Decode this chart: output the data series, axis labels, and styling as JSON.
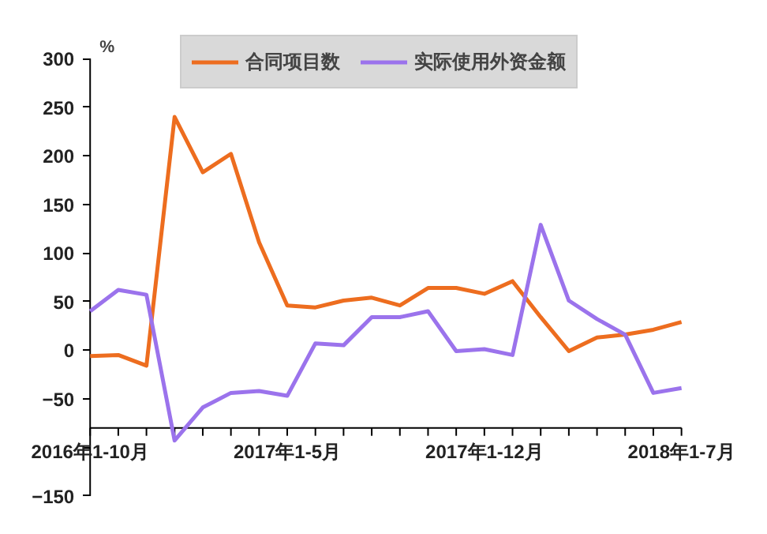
{
  "chart_data": {
    "type": "line",
    "ylabel": "%",
    "categories": [
      "2016年1-10月",
      null,
      null,
      null,
      null,
      null,
      null,
      "2017年1-5月",
      null,
      null,
      null,
      null,
      null,
      null,
      "2017年1-12月",
      null,
      null,
      null,
      null,
      null,
      null,
      "2018年1-7月"
    ],
    "series": [
      {
        "name": "合同项目数",
        "color": "#ed6d1f",
        "values": [
          -6,
          -5,
          -16,
          240,
          183,
          202,
          111,
          46,
          44,
          51,
          54,
          46,
          64,
          64,
          58,
          71,
          34,
          -1,
          13,
          16,
          21,
          29
        ]
      },
      {
        "name": "实际使用外资金额",
        "color": "#9b73ec",
        "values": [
          40,
          62,
          57,
          -93,
          -59,
          -44,
          -42,
          -47,
          7,
          5,
          34,
          34,
          40,
          -1,
          1,
          -5,
          129,
          51,
          32,
          16,
          -44,
          -39
        ]
      }
    ],
    "ylim": [
      -150,
      300
    ],
    "yticks": [
      -150,
      {
        "value": -100,
        "label": null
      },
      -50,
      0,
      50,
      100,
      150,
      200,
      250,
      300
    ],
    "grid": false,
    "legend": "top",
    "marker": "none",
    "line_style": "solid"
  }
}
